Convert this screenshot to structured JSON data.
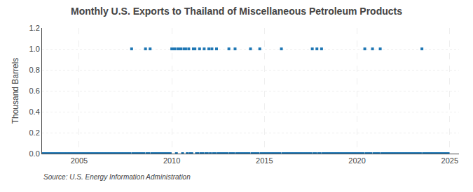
{
  "chart_data": {
    "type": "scatter",
    "title": "Monthly U.S. Exports to Thailand of Miscellaneous Petroleum Products",
    "ylabel": "Thousand Barrels",
    "source": "Source: U.S. Energy Information Administration",
    "marker": "square",
    "grid": true,
    "xlim": [
      2003.0,
      2025.5
    ],
    "ylim": [
      0.0,
      1.2
    ],
    "xticks": [
      2005,
      2010,
      2015,
      2020,
      2025
    ],
    "yticks": [
      {
        "value": 0.0,
        "label": "0.0"
      },
      0.2,
      0.4,
      0.6,
      0.8,
      {
        "value": 1.0,
        "label": "1.0"
      },
      1.2
    ],
    "x": [
      2003,
      2003.0833333333333,
      2003.1666666666667,
      2003.25,
      2003.3333333333333,
      2003.4166666666667,
      2003.5,
      2003.5833333333333,
      2003.6666666666667,
      2003.75,
      2003.8333333333333,
      2003.9166666666667,
      2004,
      2004.0833333333333,
      2004.1666666666667,
      2004.25,
      2004.3333333333333,
      2004.4166666666667,
      2004.5,
      2004.5833333333333,
      2004.6666666666667,
      2004.75,
      2004.8333333333333,
      2004.9166666666667,
      2005,
      2005.0833333333333,
      2005.1666666666667,
      2005.25,
      2005.3333333333333,
      2005.4166666666667,
      2005.5,
      2005.5833333333333,
      2005.6666666666667,
      2005.75,
      2005.8333333333333,
      2005.9166666666667,
      2006,
      2006.0833333333333,
      2006.1666666666667,
      2006.25,
      2006.3333333333333,
      2006.4166666666667,
      2006.5,
      2006.5833333333333,
      2006.6666666666667,
      2006.75,
      2006.8333333333333,
      2006.9166666666667,
      2007,
      2007.0833333333333,
      2007.1666666666667,
      2007.25,
      2007.3333333333333,
      2007.4166666666667,
      2007.5,
      2007.5833333333333,
      2007.6666666666667,
      2007.75,
      2007.8333333333333,
      2007.9166666666667,
      2008,
      2008.0833333333333,
      2008.1666666666667,
      2008.25,
      2008.3333333333333,
      2008.4166666666667,
      2008.5,
      2008.5833333333333,
      2008.6666666666667,
      2008.75,
      2008.8333333333333,
      2008.9166666666667,
      2009,
      2009.0833333333333,
      2009.1666666666667,
      2009.25,
      2009.3333333333333,
      2009.4166666666667,
      2009.5,
      2009.5833333333333,
      2009.6666666666667,
      2009.75,
      2009.8333333333333,
      2009.9166666666667,
      2010,
      2010.0833333333333,
      2010.1666666666667,
      2010.25,
      2010.3333333333333,
      2010.4166666666667,
      2010.5,
      2010.5833333333333,
      2010.6666666666667,
      2010.75,
      2010.8333333333333,
      2010.9166666666667,
      2011,
      2011.0833333333333,
      2011.1666666666667,
      2011.25,
      2011.3333333333333,
      2011.4166666666667,
      2011.5,
      2011.5833333333333,
      2011.6666666666667,
      2011.75,
      2011.8333333333333,
      2011.9166666666667,
      2012,
      2012.0833333333333,
      2012.1666666666667,
      2012.25,
      2012.3333333333333,
      2012.4166666666667,
      2012.5,
      2012.5833333333333,
      2012.6666666666667,
      2012.75,
      2012.8333333333333,
      2012.9166666666667,
      2013,
      2013.0833333333333,
      2013.1666666666667,
      2013.25,
      2013.3333333333333,
      2013.4166666666667,
      2013.5,
      2013.5833333333333,
      2013.6666666666667,
      2013.75,
      2013.8333333333333,
      2013.9166666666667,
      2014,
      2014.0833333333333,
      2014.1666666666667,
      2014.25,
      2014.3333333333333,
      2014.4166666666667,
      2014.5,
      2014.5833333333333,
      2014.6666666666667,
      2014.75,
      2014.8333333333333,
      2014.9166666666667,
      2015,
      2015.0833333333333,
      2015.1666666666667,
      2015.25,
      2015.3333333333333,
      2015.4166666666667,
      2015.5,
      2015.5833333333333,
      2015.6666666666667,
      2015.75,
      2015.8333333333333,
      2015.9166666666667,
      2016,
      2016.0833333333333,
      2016.1666666666667,
      2016.25,
      2016.3333333333333,
      2016.4166666666667,
      2016.5,
      2016.5833333333333,
      2016.6666666666667,
      2016.75,
      2016.8333333333333,
      2016.9166666666667,
      2017,
      2017.0833333333333,
      2017.1666666666667,
      2017.25,
      2017.3333333333333,
      2017.4166666666667,
      2017.5,
      2017.5833333333333,
      2017.6666666666667,
      2017.75,
      2017.8333333333333,
      2017.9166666666667,
      2018,
      2018.0833333333333,
      2018.1666666666667,
      2018.25,
      2018.3333333333333,
      2018.4166666666667,
      2018.5,
      2018.5833333333333,
      2018.6666666666667,
      2018.75,
      2018.8333333333333,
      2018.9166666666667,
      2019,
      2019.0833333333333,
      2019.1666666666667,
      2019.25,
      2019.3333333333333,
      2019.4166666666667,
      2019.5,
      2019.5833333333333,
      2019.6666666666667,
      2019.75,
      2019.8333333333333,
      2019.9166666666667,
      2020,
      2020.0833333333333,
      2020.1666666666667,
      2020.25,
      2020.3333333333333,
      2020.4166666666667,
      2020.5,
      2020.5833333333333,
      2020.6666666666667,
      2020.75,
      2020.8333333333333,
      2020.9166666666667,
      2021,
      2021.0833333333333,
      2021.1666666666667,
      2021.25,
      2021.3333333333333,
      2021.4166666666667,
      2021.5,
      2021.5833333333333,
      2021.6666666666667,
      2021.75,
      2021.8333333333333,
      2021.9166666666667,
      2022,
      2022.0833333333333,
      2022.1666666666667,
      2022.25,
      2022.3333333333333,
      2022.4166666666667,
      2022.5,
      2022.5833333333333,
      2022.6666666666667,
      2022.75,
      2022.8333333333333,
      2022.9166666666667,
      2023,
      2023.0833333333333,
      2023.1666666666667,
      2023.25,
      2023.3333333333333,
      2023.4166666666667,
      2023.5,
      2023.5833333333333,
      2023.6666666666667,
      2023.75,
      2023.8333333333333,
      2023.9166666666667,
      2024,
      2024.0833333333333,
      2024.1666666666667,
      2024.25,
      2024.3333333333333,
      2024.4166666666667,
      2024.5,
      2024.5833333333333,
      2024.6666666666667,
      2024.75,
      2024.8333333333333,
      2024.9166666666667
    ],
    "values": [
      0,
      0,
      0,
      0,
      0,
      0,
      0,
      0,
      0,
      0,
      0,
      0,
      0,
      0,
      0,
      0,
      0,
      0,
      0,
      0,
      0,
      0,
      0,
      0,
      0,
      0,
      0,
      0,
      0,
      0,
      0,
      0,
      0,
      0,
      0,
      0,
      0,
      0,
      0,
      0,
      0,
      0,
      0,
      0,
      0,
      0,
      0,
      0,
      0,
      0,
      0,
      0,
      0,
      0,
      0,
      0,
      0,
      0,
      1,
      0,
      0,
      0,
      0,
      0,
      0,
      0,
      0,
      1,
      0,
      0,
      1,
      0,
      0,
      0,
      0,
      0,
      0,
      0,
      0,
      0,
      0,
      0,
      0,
      0,
      1,
      1,
      1,
      0,
      1,
      1,
      1,
      0,
      1,
      1,
      0,
      1,
      0,
      0,
      1,
      1,
      0,
      0,
      1,
      0,
      0,
      1,
      0,
      0,
      1,
      0,
      1,
      0,
      0,
      1,
      0,
      0,
      0,
      0,
      0,
      0,
      0,
      1,
      0,
      0,
      0,
      1,
      0,
      0,
      0,
      0,
      0,
      0,
      0,
      0,
      0,
      1,
      0,
      0,
      0,
      0,
      0,
      1,
      0,
      0,
      0,
      0,
      0,
      0,
      0,
      0,
      0,
      0,
      0,
      0,
      0,
      1,
      0,
      0,
      0,
      0,
      0,
      0,
      0,
      0,
      0,
      0,
      0,
      0,
      0,
      0,
      0,
      0,
      0,
      0,
      0,
      1,
      0,
      0,
      1,
      0,
      0,
      1,
      0,
      0,
      0,
      0,
      0,
      0,
      0,
      0,
      0,
      0,
      0,
      0,
      0,
      0,
      0,
      0,
      0,
      0,
      0,
      0,
      0,
      0,
      0,
      0,
      0,
      0,
      0,
      1,
      0,
      0,
      0,
      0,
      1,
      0,
      0,
      0,
      0,
      1,
      0,
      0,
      0,
      0,
      0,
      0,
      0,
      0,
      0,
      0,
      0,
      0,
      0,
      0,
      0,
      0,
      0,
      0,
      0,
      0,
      0,
      0,
      0,
      0,
      0,
      0,
      1,
      0,
      0,
      0,
      0,
      0,
      0,
      0,
      0,
      0,
      0,
      0,
      0,
      0,
      0,
      0,
      0,
      0
    ]
  }
}
